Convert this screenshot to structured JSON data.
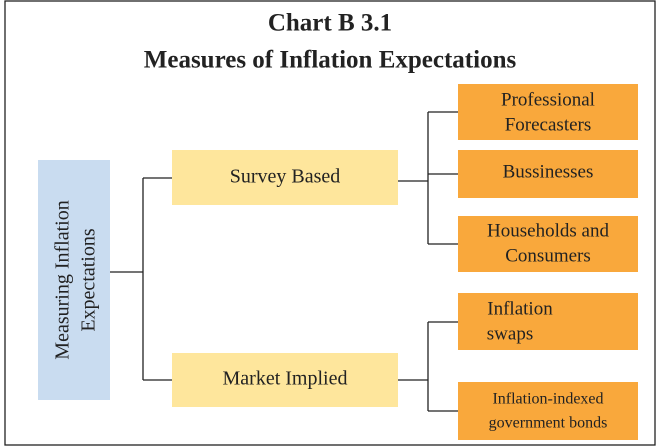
{
  "title": {
    "line1": "Chart B 3.1",
    "line2": "Measures of Inflation Expectations"
  },
  "root": {
    "lines": [
      "Measuring Inflation",
      "Expectations"
    ]
  },
  "branches": [
    {
      "label": "Survey Based",
      "children": [
        {
          "lines": [
            "Professional",
            "Forecasters"
          ]
        },
        {
          "lines": [
            "Bussinesses"
          ]
        },
        {
          "lines": [
            "Households and",
            "Consumers"
          ]
        }
      ]
    },
    {
      "label": "Market Implied",
      "children": [
        {
          "lines": [
            "Inflation",
            "swaps"
          ]
        },
        {
          "lines": [
            "Inflation-indexed",
            "government bonds"
          ]
        }
      ]
    }
  ]
}
